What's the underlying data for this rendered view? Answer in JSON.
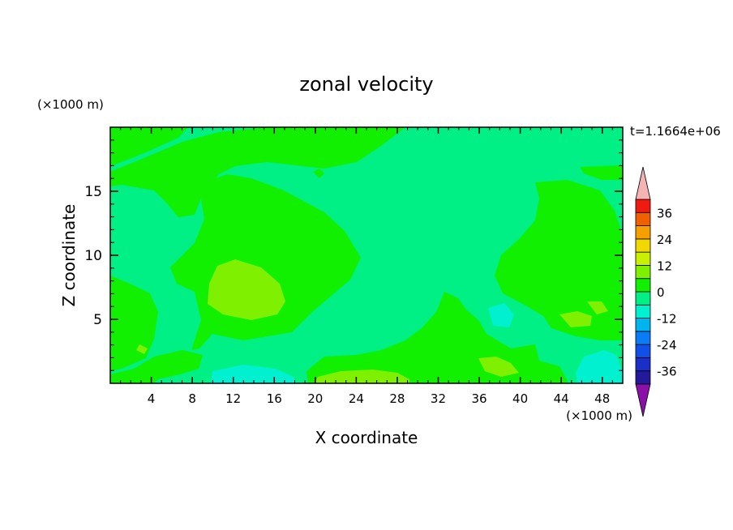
{
  "chart_data": {
    "type": "heatmap",
    "title": "zonal velocity",
    "xlabel": "X coordinate",
    "ylabel": "Z coordinate",
    "x_unit": "(×1000 m)",
    "y_unit": "(×1000 m)",
    "time_label": "t=1.1664e+06",
    "xlim": [
      0,
      50
    ],
    "ylim": [
      0,
      20
    ],
    "x_ticks": [
      4,
      8,
      12,
      16,
      20,
      24,
      28,
      32,
      36,
      40,
      44,
      48
    ],
    "y_ticks": [
      5,
      10,
      15
    ],
    "colorbar": {
      "levels": [
        -42,
        -36,
        -30,
        -24,
        -18,
        -12,
        -6,
        0,
        6,
        12,
        18,
        24,
        30,
        36,
        42
      ],
      "tick_labels": [
        "36",
        "24",
        "12",
        "0",
        "-12",
        "-24",
        "-36"
      ],
      "tick_values": [
        36,
        24,
        12,
        0,
        -12,
        -24,
        -36
      ],
      "colors": [
        "#3a0a8a",
        "#221a9a",
        "#1a2fc8",
        "#1150e8",
        "#0a7cf5",
        "#00b4f0",
        "#00f0d0",
        "#00f086",
        "#10f000",
        "#7ef000",
        "#c8f000",
        "#f0d800",
        "#f5a000",
        "#f06000",
        "#f01a10",
        "#e00000"
      ],
      "over_color": "#f5b4b4",
      "under_color": "#8a10a8"
    },
    "regions": [
      {
        "level": "0 to 6",
        "color": "#00f086",
        "desc": "background"
      },
      {
        "level": "6 to 12",
        "color": "#10f000"
      },
      {
        "level": "12 to 18",
        "color": "#7ef000"
      },
      {
        "level": "-6 to 0",
        "color": "#00f0d0"
      }
    ]
  }
}
